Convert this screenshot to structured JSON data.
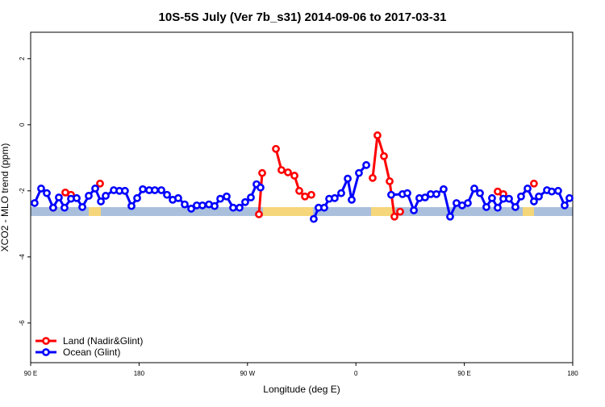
{
  "chart_data": {
    "type": "line",
    "title": "10S-5S July (Ver 7b_s31)   2014-09-06 to 2017-03-31",
    "x_label": "Longitude (deg E)",
    "y_label": "XCO2 - MLO trend (ppm)",
    "xlim": [
      90,
      540
    ],
    "ylim": [
      -7.2,
      2.8
    ],
    "xticks": [
      {
        "value": 90,
        "label": "90 E"
      },
      180,
      {
        "value": 270,
        "label": "90 W"
      },
      {
        "value": 360,
        "label": "0"
      },
      {
        "value": 450,
        "label": "90 E"
      },
      {
        "value": 540,
        "label": "180"
      }
    ],
    "yticks": [
      -6,
      -4,
      -2,
      0,
      2
    ],
    "legend": "bottom-left",
    "series": [
      {
        "name": "Land (Nadir&Glint)",
        "color": "#ff0000",
        "x": [
          108.7,
          111,
          118.8,
          123.5,
          130,
          147.6,
          200,
          279.5,
          282.2,
          285,
          293.6,
          298.2,
          303.6,
          309.0,
          313.0,
          317.7,
          323.0,
          340,
          373.9,
          377.9,
          383.3,
          388.0,
          392.0,
          396.7,
          450,
          477.7,
          482.4,
          500,
          507.8
        ],
        "values": [
          -2.51,
          null,
          -2.05,
          -2.12,
          null,
          -1.78,
          null,
          -2.71,
          -1.46,
          null,
          -0.73,
          -1.37,
          -1.44,
          -1.54,
          -2.0,
          -2.17,
          -2.12,
          null,
          -1.61,
          -0.32,
          -0.95,
          -1.71,
          -2.78,
          -2.63,
          null,
          -2.02,
          -2.1,
          null,
          -1.78
        ]
      },
      {
        "name": "Ocean (Glint)",
        "color": "#0000ff",
        "x": [
          93.3,
          98.7,
          103.4,
          108.7,
          113.4,
          118.1,
          123.5,
          128.2,
          132.9,
          138.2,
          143.6,
          148.3,
          152.3,
          159.0,
          163.7,
          168.3,
          173.7,
          178.4,
          183.1,
          188.4,
          193.1,
          198.5,
          203.2,
          207.9,
          212.5,
          217.9,
          223.3,
          227.9,
          232.6,
          238.0,
          242.7,
          247.4,
          252.7,
          258.1,
          263.4,
          268.1,
          272.8,
          277.5,
          280.8,
          300,
          325.0,
          329.0,
          333.7,
          337.8,
          342.4,
          347.8,
          353.2,
          356.5,
          362.5,
          368.6,
          380,
          389.3,
          398.7,
          402.7,
          408.1,
          412.7,
          417.4,
          422.1,
          426.8,
          432.8,
          438.2,
          443.5,
          448.2,
          452.9,
          458.3,
          463.0,
          468.3,
          473.0,
          477.7,
          482.4,
          487.1,
          492.4,
          497.1,
          502.5,
          507.8,
          511.9,
          518.6,
          522.6,
          527.9,
          533.3,
          537.3
        ],
        "values": [
          -2.37,
          -1.93,
          -2.07,
          -2.51,
          -2.2,
          -2.51,
          -2.24,
          -2.22,
          -2.49,
          -2.15,
          -1.93,
          -2.32,
          -2.15,
          -1.98,
          -2.0,
          -2.0,
          -2.46,
          -2.22,
          -1.95,
          -1.98,
          -1.98,
          -1.98,
          -2.12,
          -2.27,
          -2.22,
          -2.41,
          -2.54,
          -2.44,
          -2.44,
          -2.41,
          -2.46,
          -2.24,
          -2.17,
          -2.51,
          -2.51,
          -2.34,
          -2.2,
          -1.8,
          -1.9,
          null,
          -2.85,
          -2.51,
          -2.51,
          -2.24,
          -2.22,
          -2.07,
          -1.63,
          -2.27,
          -1.46,
          -1.22,
          null,
          -2.12,
          -2.1,
          -2.07,
          -2.59,
          -2.22,
          -2.2,
          -2.1,
          -2.1,
          -1.95,
          -2.78,
          -2.37,
          -2.44,
          -2.37,
          -1.93,
          -2.07,
          -2.49,
          -2.22,
          -2.51,
          -2.24,
          -2.24,
          -2.49,
          -2.17,
          -1.93,
          -2.32,
          -2.17,
          -1.98,
          -2.02,
          -2.0,
          -2.44,
          -2.22
        ]
      }
    ]
  }
}
